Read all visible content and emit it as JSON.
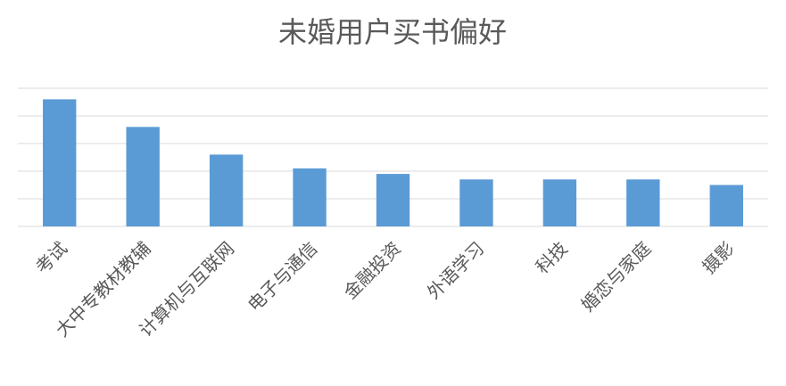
{
  "chart_data": {
    "type": "bar",
    "title": "未婚用户买书偏好",
    "categories": [
      "考试",
      "大中专教材教辅",
      "计算机与互联网",
      "电子与通信",
      "金融投资",
      "外语学习",
      "科技",
      "婚恋与家庭",
      "摄影"
    ],
    "values": [
      4.6,
      3.6,
      2.6,
      2.1,
      1.9,
      1.7,
      1.7,
      1.7,
      1.5
    ],
    "color": "#5b9bd5",
    "ylim": [
      0,
      5
    ],
    "yticks": [
      0,
      1,
      2,
      3,
      4,
      5
    ],
    "grid": true
  }
}
